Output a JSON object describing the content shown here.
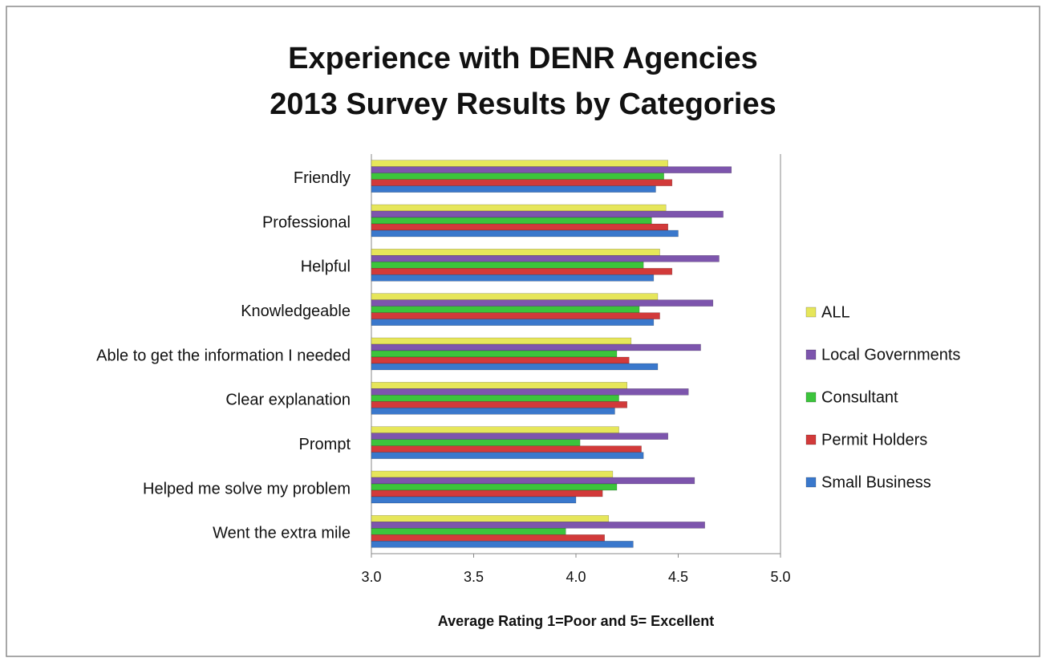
{
  "chart_data": {
    "type": "bar",
    "orientation": "horizontal",
    "title": [
      "Experience with DENR Agencies",
      "2013 Survey Results by Categories"
    ],
    "x_label": "Average Rating 1=Poor  and 5= Excellent",
    "categories": [
      "Friendly",
      "Professional",
      "Helpful",
      "Knowledgeable",
      "Able to get the information I needed",
      "Clear explanation",
      "Prompt",
      "Helped me solve my problem",
      "Went the extra mile"
    ],
    "series": [
      {
        "name": "ALL",
        "color": "#e6e65a",
        "values": [
          4.45,
          4.44,
          4.41,
          4.4,
          4.27,
          4.25,
          4.21,
          4.18,
          4.16
        ]
      },
      {
        "name": "Local Governments",
        "color": "#7d55ad",
        "values": [
          4.76,
          4.72,
          4.7,
          4.67,
          4.61,
          4.55,
          4.45,
          4.58,
          4.63
        ]
      },
      {
        "name": "Consultant",
        "color": "#3cc43c",
        "values": [
          4.43,
          4.37,
          4.33,
          4.31,
          4.2,
          4.21,
          4.02,
          4.2,
          3.95
        ]
      },
      {
        "name": "Permit Holders",
        "color": "#d23a3a",
        "values": [
          4.47,
          4.45,
          4.47,
          4.41,
          4.26,
          4.25,
          4.32,
          4.13,
          4.14
        ]
      },
      {
        "name": "Small Business",
        "color": "#3a78cc",
        "values": [
          4.39,
          4.5,
          4.38,
          4.38,
          4.4,
          4.19,
          4.33,
          4.0,
          4.28
        ]
      }
    ],
    "xlim": [
      3.0,
      5.0
    ],
    "xticks": [
      {
        "value": 3.0,
        "label": "3.0"
      },
      {
        "value": 3.5,
        "label": "3.5"
      },
      {
        "value": 4.0,
        "label": "4.0"
      },
      {
        "value": 4.5,
        "label": "4.5"
      },
      {
        "value": 5.0,
        "label": "5.0"
      }
    ],
    "grid": false,
    "legend": "right"
  }
}
